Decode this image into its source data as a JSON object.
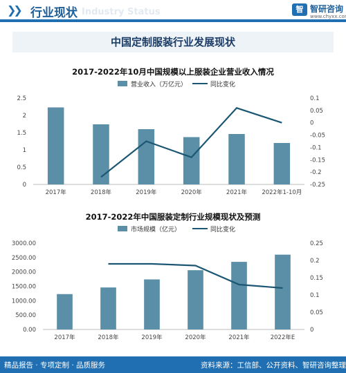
{
  "header": {
    "title": "行业现状",
    "watermark": "Industry Status",
    "logo_mark": "智",
    "logo_name": "智研咨询",
    "logo_url": "www.chyxx.com"
  },
  "banner": {
    "title": "中国定制服装行业发展现状"
  },
  "colors": {
    "bar": "#5b8fa8",
    "line": "#1b5673",
    "accent": "#1f6fb2"
  },
  "chart_data": [
    {
      "type": "bar",
      "title": "2017-2022年10月中国规模以上服装企业营业收入情况",
      "categories": [
        "2017年",
        "2018年",
        "2019年",
        "2020年",
        "2021年",
        "2022年1-10月"
      ],
      "series": [
        {
          "name": "营业收入（万亿元）",
          "type": "bar",
          "axis": "left",
          "values": [
            2.23,
            1.74,
            1.6,
            1.37,
            1.46,
            1.2
          ]
        },
        {
          "name": "同比变化",
          "type": "line",
          "axis": "right",
          "values": [
            null,
            -0.22,
            -0.075,
            -0.14,
            0.06,
            0.0
          ]
        }
      ],
      "ylim": [
        0,
        2.5
      ],
      "yticks": [
        "0",
        "0.5",
        "1",
        "1.5",
        "2",
        "2.5"
      ],
      "y2lim": [
        -0.25,
        0.1
      ],
      "y2ticks": [
        "-0.25",
        "-0.2",
        "-0.15",
        "-0.1",
        "-0.05",
        "0",
        "0.05",
        "0.1"
      ],
      "legend": "top-center",
      "grid": false
    },
    {
      "type": "bar",
      "title": "2017-2022年中国服装定制行业规模现状及预测",
      "categories": [
        "2017年",
        "2018年",
        "2019年",
        "2020年",
        "2021年",
        "2022年E"
      ],
      "series": [
        {
          "name": "市场规模（亿元）",
          "type": "bar",
          "axis": "left",
          "values": [
            1230,
            1460,
            1740,
            2060,
            2350,
            2600
          ]
        },
        {
          "name": "同比变化",
          "type": "line",
          "axis": "right",
          "values": [
            null,
            0.19,
            0.19,
            0.185,
            0.13,
            0.12
          ]
        }
      ],
      "ylim": [
        0,
        3000
      ],
      "yticks": [
        "0.00",
        "500.00",
        "1000.00",
        "1500.00",
        "2000.00",
        "2500.00",
        "3000.00"
      ],
      "y2lim": [
        0,
        0.25
      ],
      "y2ticks": [
        "0",
        "0.05",
        "0.1",
        "0.15",
        "0.2",
        "0.25"
      ],
      "legend": "top-center",
      "grid": false
    }
  ],
  "footer": {
    "left": "精品报告 · 专项定制 · 品质服务",
    "right": "资料来源：工信部、公开资料、智研咨询整理"
  }
}
